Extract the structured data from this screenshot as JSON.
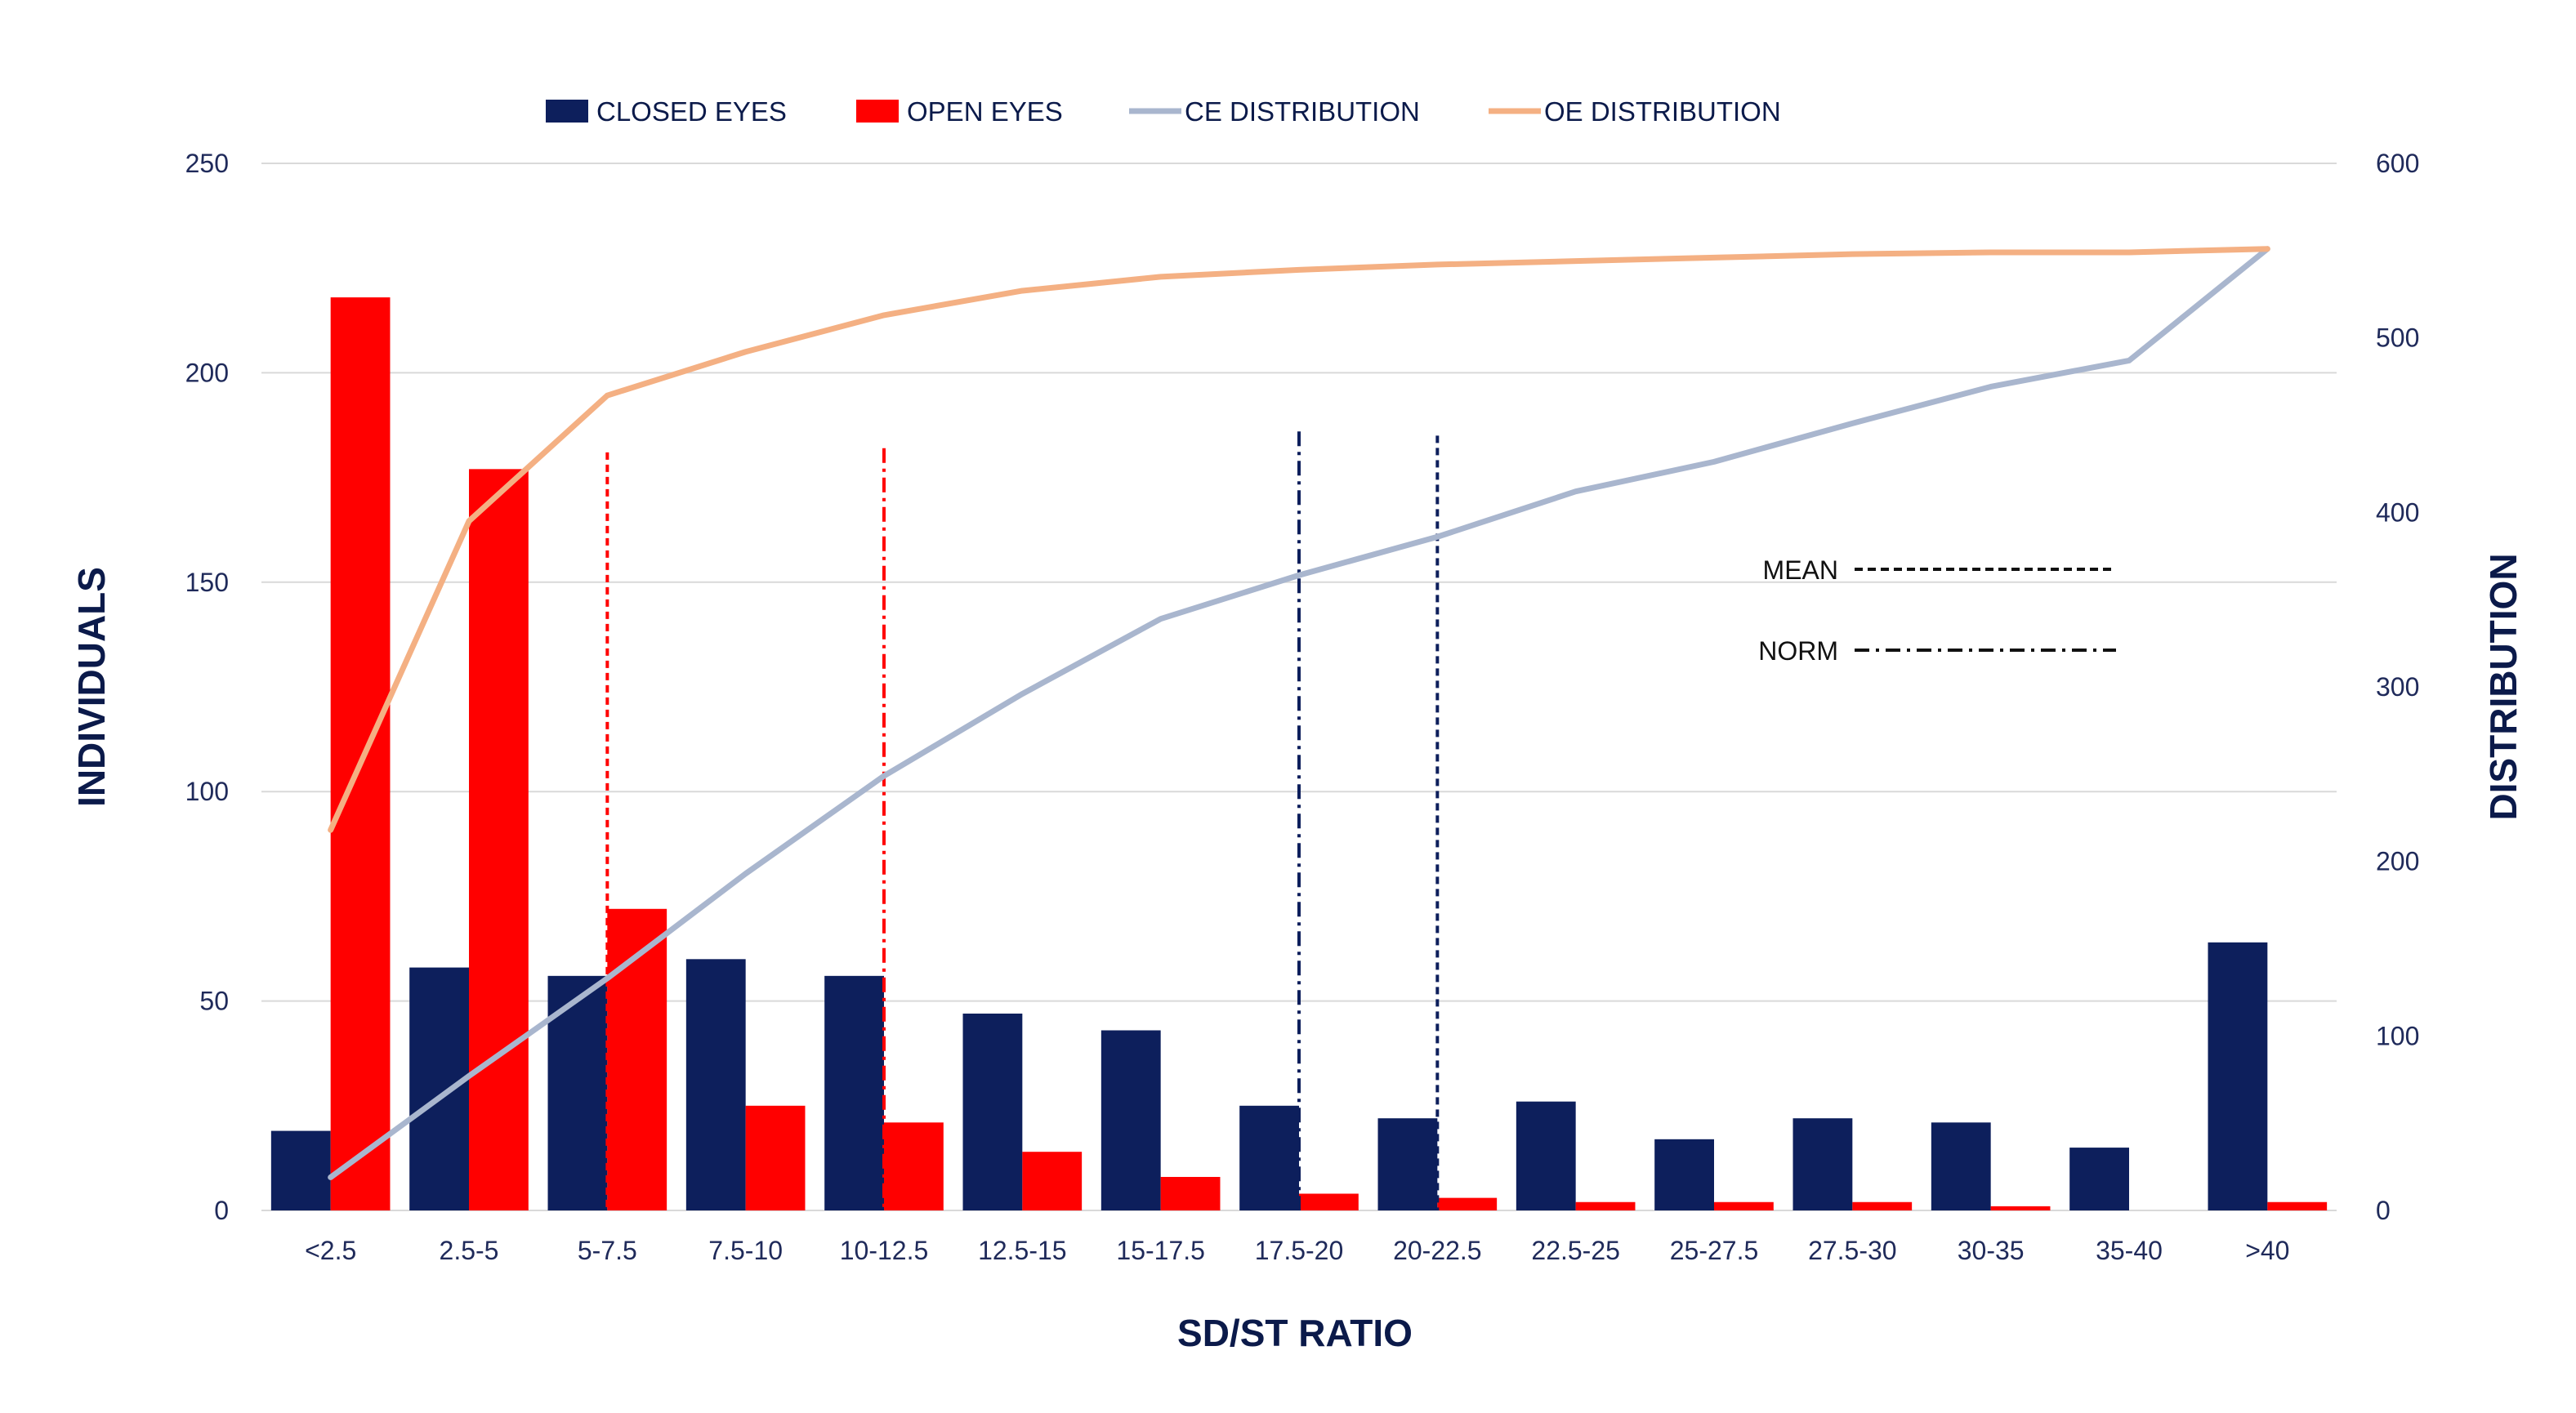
{
  "chart_data": {
    "type": "bar",
    "xlabel": "SD/ST RATIO",
    "ylabel": "INDIVIDUALS",
    "y2label": "DISTRIBUTION",
    "ylim": [
      0,
      250
    ],
    "y2lim": [
      0,
      600
    ],
    "yticks": [
      "0",
      "50",
      "100",
      "150",
      "200",
      "250"
    ],
    "y2ticks": [
      "0",
      "100",
      "200",
      "300",
      "400",
      "500",
      "600"
    ],
    "grid": true,
    "legend_position": "top",
    "categories": [
      "<2.5",
      "2.5-5",
      "5-7.5",
      "7.5-10",
      "10-12.5",
      "12.5-15",
      "15-17.5",
      "17.5-20",
      "20-22.5",
      "22.5-25",
      "25-27.5",
      "27.5-30",
      "30-35",
      "35-40",
      ">40"
    ],
    "series": [
      {
        "name": "CLOSED EYES",
        "type": "bar",
        "axis": "left",
        "color": "#0d1f5c",
        "values": [
          19,
          58,
          56,
          60,
          56,
          47,
          43,
          25,
          22,
          26,
          17,
          22,
          21,
          15,
          64
        ]
      },
      {
        "name": "OPEN EYES",
        "type": "bar",
        "axis": "left",
        "color": "#ff0000",
        "values": [
          218,
          177,
          72,
          25,
          21,
          14,
          8,
          4,
          3,
          2,
          2,
          2,
          1,
          0,
          2
        ]
      },
      {
        "name": "CE DISTRIBUTION",
        "type": "line",
        "axis": "right",
        "color": "#a9b6ce",
        "values": [
          19,
          77,
          133,
          193,
          249,
          296,
          339,
          364,
          386,
          412,
          429,
          451,
          472,
          487,
          551
        ]
      },
      {
        "name": "OE DISTRIBUTION",
        "type": "line",
        "axis": "right",
        "color": "#f4b083",
        "values": [
          218,
          395,
          467,
          492,
          513,
          527,
          535,
          539,
          542,
          544,
          546,
          548,
          549,
          549,
          551
        ]
      }
    ],
    "reference_lines": [
      {
        "label": "MEAN",
        "style": "dashed",
        "color": "#ff0000",
        "category_index": 2,
        "top_value": 181
      },
      {
        "label": "NORM",
        "style": "dashdot",
        "color": "#ff0000",
        "category_index": 4,
        "top_value": 182
      },
      {
        "label": "NORM",
        "style": "dashdot",
        "color": "#0d1f5c",
        "category_index": 7,
        "top_value": 186
      },
      {
        "label": "MEAN",
        "style": "dashed",
        "color": "#0d1f5c",
        "category_index": 8,
        "top_value": 185
      }
    ],
    "annotations": [
      {
        "label": "MEAN",
        "style": "dashed"
      },
      {
        "label": "NORM",
        "style": "dashdot"
      }
    ]
  }
}
